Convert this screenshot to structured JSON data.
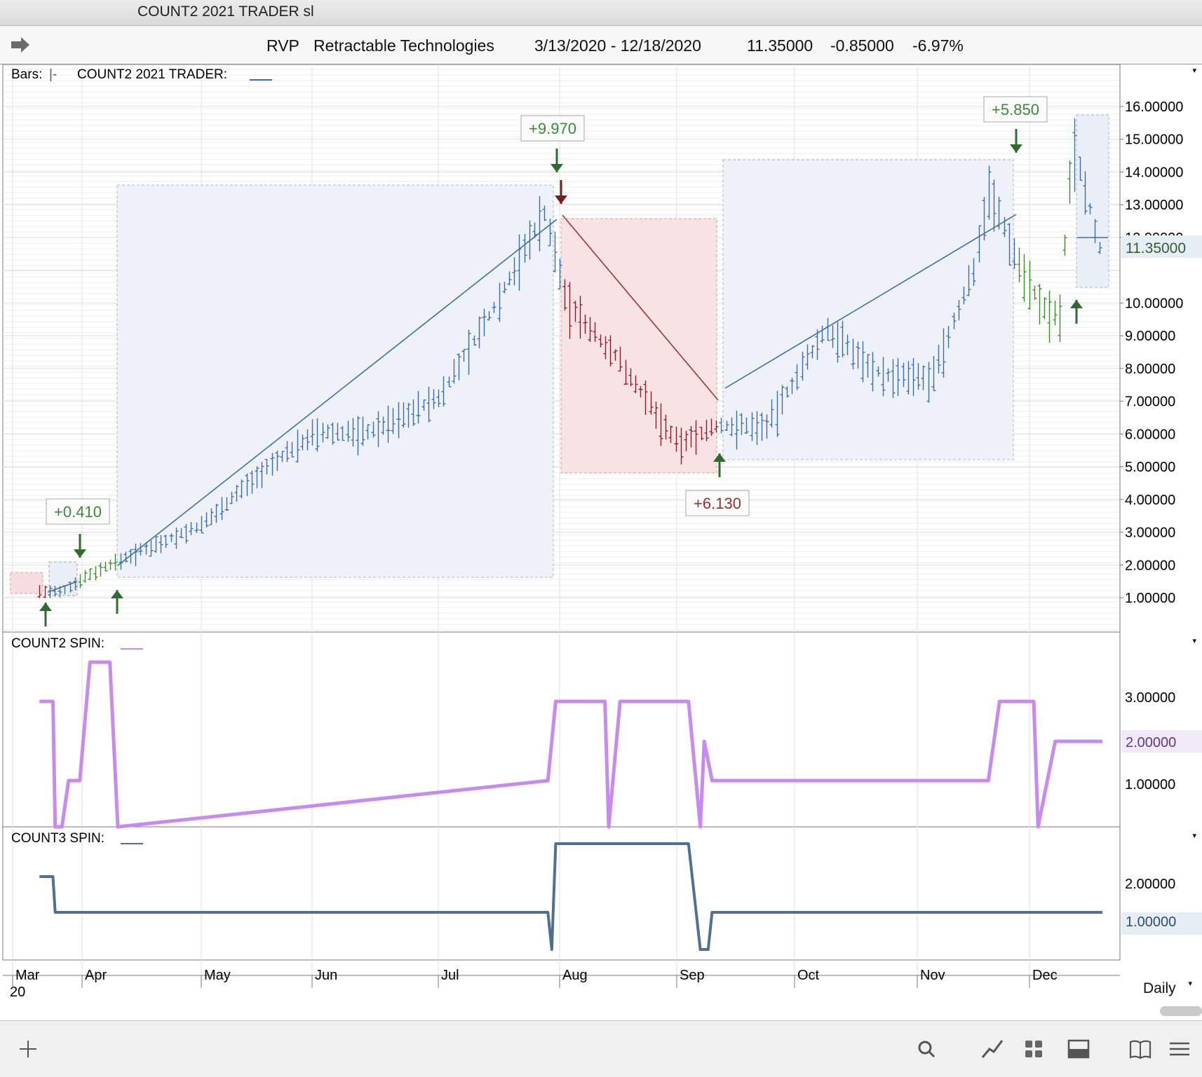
{
  "window": {
    "title": "COUNT2 2021 TRADER sl"
  },
  "header": {
    "symbol": "RVP",
    "company": "Retractable Technologies",
    "date_range": "3/13/2020 - 12/18/2020",
    "last": "11.35000",
    "change": "-0.85000",
    "change_pct": "-6.97%"
  },
  "panels": {
    "price_label": "Bars:",
    "price_study": "COUNT2 2021 TRADER:",
    "spin2_label": "COUNT2 SPIN:",
    "spin3_label": "COUNT3 SPIN:"
  },
  "price_axis": {
    "ticks": [
      "16.00000",
      "15.00000",
      "14.00000",
      "13.00000",
      "12.00000",
      "10.00000",
      "9.00000",
      "8.00000",
      "7.00000",
      "6.00000",
      "5.00000",
      "4.00000",
      "3.00000",
      "2.00000",
      "1.00000"
    ],
    "current": "11.35000",
    "ylim": [
      0,
      17
    ]
  },
  "spin2_axis": {
    "ticks": [
      "3.00000",
      "1.00000"
    ],
    "current": "2.00000"
  },
  "spin3_axis": {
    "ticks": [
      "2.00000"
    ],
    "current": "1.00000"
  },
  "time_axis": {
    "months": [
      "Mar",
      "Apr",
      "May",
      "Jun",
      "Jul",
      "Aug",
      "Sep",
      "Oct",
      "Nov",
      "Dec"
    ],
    "year": "20"
  },
  "trade_labels": [
    {
      "text": "+0.410",
      "color": "#3a8a3a"
    },
    {
      "text": "+9.970",
      "color": "#3a8a3a"
    },
    {
      "text": "+6.130",
      "color": "#9b2c2c"
    },
    {
      "text": "+5.850",
      "color": "#3a8a3a"
    }
  ],
  "colors": {
    "up": "#3d6fa6",
    "down": "#8b1e2b",
    "neutral": "#3f8a2f",
    "spin2": "#c88af0",
    "spin3": "#4f6f96"
  },
  "chart_data": [
    {
      "type": "line",
      "title": "",
      "ylabel": "",
      "ylim": [
        0,
        17
      ],
      "series": [
        {
          "x": [
            "2020-03-13",
            "2020-03-23",
            "2020-04-01",
            "2020-04-15",
            "2020-05-01",
            "2020-05-15",
            "2020-06-01",
            "2020-06-15",
            "2020-07-01",
            "2020-07-15",
            "2020-07-28",
            "2020-08-03",
            "2020-08-17",
            "2020-09-01",
            "2020-09-10",
            "2020-09-24",
            "2020-10-09",
            "2020-10-23",
            "2020-11-05",
            "2020-11-16",
            "2020-11-20",
            "2020-11-27",
            "2020-12-04",
            "2020-12-08",
            "2020-12-11",
            "2020-12-18"
          ],
          "values": [
            1.2,
            1.15,
            1.6,
            2.4,
            3.2,
            4.6,
            6.0,
            6.1,
            7.1,
            9.8,
            12.8,
            10.0,
            8.2,
            5.7,
            6.2,
            6.3,
            9.2,
            7.8,
            7.7,
            11.0,
            13.5,
            11.5,
            9.8,
            9.6,
            15.0,
            11.35
          ]
        }
      ]
    },
    {
      "type": "line",
      "title": "",
      "ylabel": "",
      "ylim": [
        0,
        4
      ],
      "series": [
        {
          "x": [
            "2020-03-13",
            "2020-03-19",
            "2020-03-20",
            "2020-03-23",
            "2020-03-26",
            "2020-03-31",
            "2020-04-03",
            "2020-04-08",
            "2020-04-10",
            "2020-07-29",
            "2020-07-31",
            "2020-08-13",
            "2020-08-14",
            "2020-08-17",
            "2020-09-04",
            "2020-09-07",
            "2020-09-08",
            "2020-09-10",
            "2020-11-20",
            "2020-11-23",
            "2020-12-02",
            "2020-12-03",
            "2020-12-07",
            "2020-12-18"
          ],
          "values": [
            3,
            3,
            0,
            0,
            1,
            1,
            4,
            4,
            0,
            1,
            3,
            3,
            0,
            3,
            3,
            0,
            2,
            1,
            1,
            3,
            3,
            0,
            2,
            2
          ]
        }
      ]
    },
    {
      "type": "line",
      "title": "",
      "ylabel": "",
      "ylim": [
        0,
        3
      ],
      "series": [
        {
          "x": [
            "2020-03-13",
            "2020-03-19",
            "2020-03-20",
            "2020-07-29",
            "2020-07-30",
            "2020-07-31",
            "2020-09-04",
            "2020-09-07",
            "2020-09-09",
            "2020-09-10",
            "2020-12-18"
          ],
          "values": [
            2,
            2,
            1,
            1,
            0,
            3,
            3,
            0,
            0,
            1,
            1
          ]
        }
      ]
    }
  ],
  "footer": {
    "interval": "Daily"
  },
  "toolbar_icons": [
    "plus-icon",
    "search-icon",
    "line-chart-icon",
    "grid-icon",
    "panel-icon",
    "book-icon",
    "menu-icon"
  ]
}
